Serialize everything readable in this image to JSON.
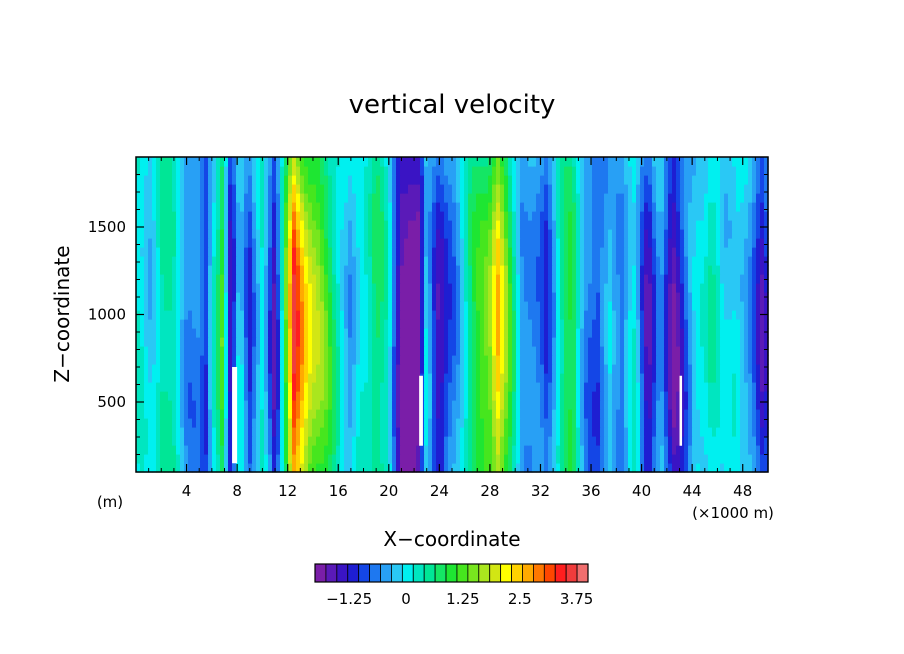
{
  "chart_data": {
    "type": "heatmap",
    "title": "vertical velocity",
    "xlabel": "X−coordinate",
    "ylabel": "Z−coordinate",
    "x_unit_left": "(m)",
    "x_unit_right": "(×1000 m)",
    "xlim": [
      0,
      50
    ],
    "ylim": [
      100,
      1900
    ],
    "x_ticks": [
      4,
      8,
      12,
      16,
      20,
      24,
      28,
      32,
      36,
      40,
      44,
      48
    ],
    "y_ticks": [
      500,
      1000,
      1500
    ],
    "x_tick_labels": [
      "4",
      "8",
      "12",
      "16",
      "20",
      "24",
      "28",
      "32",
      "36",
      "40",
      "44",
      "48"
    ],
    "y_tick_labels": [
      "500",
      "1000",
      "1500"
    ],
    "colorbar": {
      "min": -2.0,
      "max": 4.0,
      "step": 0.25,
      "labels": [
        "−1.25",
        "0",
        "1.25",
        "2.5",
        "3.75"
      ],
      "label_values": [
        -1.25,
        0,
        1.25,
        2.5,
        3.75
      ],
      "colors": [
        "#7a1ea8",
        "#5a1ab8",
        "#3a14c4",
        "#1e1ed2",
        "#1446e6",
        "#1e78f0",
        "#28a0f5",
        "#2ac8f5",
        "#00f0f0",
        "#00e6c0",
        "#00e696",
        "#14e664",
        "#1ee632",
        "#46e61e",
        "#78e61e",
        "#aae61e",
        "#d2e614",
        "#ffff00",
        "#ffd200",
        "#ffaa00",
        "#ff7800",
        "#ff4600",
        "#ff1e1e",
        "#f03c3c",
        "#f06e6e"
      ]
    },
    "columns": [
      {
        "x": 0.0,
        "w": 0.16
      },
      {
        "x": 1.0,
        "w": -0.1
      },
      {
        "x": 2.0,
        "w": 0.55
      },
      {
        "x": 3.0,
        "w": 0.3
      },
      {
        "x": 4.0,
        "w": -0.3
      },
      {
        "x": 5.0,
        "w": -0.6
      },
      {
        "x": 5.5,
        "w": -1.1
      },
      {
        "x": 6.0,
        "w": 0.15
      },
      {
        "x": 6.8,
        "w": 1.2
      },
      {
        "x": 7.5,
        "w": -1.6
      },
      {
        "x": 8.2,
        "w": 0.2
      },
      {
        "x": 9.0,
        "w": -0.8
      },
      {
        "x": 10.0,
        "w": 0.1
      },
      {
        "x": 11.0,
        "w": -1.3
      },
      {
        "x": 12.0,
        "w": 1.6
      },
      {
        "x": 12.5,
        "w": 3.1
      },
      {
        "x": 13.0,
        "w": 2.6
      },
      {
        "x": 14.0,
        "w": 1.8
      },
      {
        "x": 15.0,
        "w": 1.1
      },
      {
        "x": 16.0,
        "w": 0.5
      },
      {
        "x": 17.0,
        "w": -0.5
      },
      {
        "x": 18.0,
        "w": 0.3
      },
      {
        "x": 19.0,
        "w": 0.8
      },
      {
        "x": 20.0,
        "w": 0.1
      },
      {
        "x": 21.0,
        "w": -1.6
      },
      {
        "x": 21.8,
        "w": -2.0
      },
      {
        "x": 22.4,
        "w": -1.8
      },
      {
        "x": 23.0,
        "w": 0.2
      },
      {
        "x": 24.0,
        "w": -1.4
      },
      {
        "x": 25.0,
        "w": -0.7
      },
      {
        "x": 26.0,
        "w": 0.3
      },
      {
        "x": 27.0,
        "w": 0.9
      },
      {
        "x": 28.0,
        "w": 1.6
      },
      {
        "x": 28.6,
        "w": 2.4
      },
      {
        "x": 29.5,
        "w": 1.0
      },
      {
        "x": 30.5,
        "w": -0.2
      },
      {
        "x": 31.5,
        "w": -0.6
      },
      {
        "x": 32.5,
        "w": -0.9
      },
      {
        "x": 33.5,
        "w": 0.4
      },
      {
        "x": 34.5,
        "w": 0.9
      },
      {
        "x": 35.5,
        "w": -0.3
      },
      {
        "x": 36.5,
        "w": -1.0
      },
      {
        "x": 37.5,
        "w": 0.0
      },
      {
        "x": 38.5,
        "w": -0.6
      },
      {
        "x": 39.5,
        "w": 0.2
      },
      {
        "x": 40.5,
        "w": -1.3
      },
      {
        "x": 41.5,
        "w": -0.4
      },
      {
        "x": 42.5,
        "w": -1.5
      },
      {
        "x": 43.5,
        "w": -0.8
      },
      {
        "x": 44.5,
        "w": 0.1
      },
      {
        "x": 45.5,
        "w": 0.5
      },
      {
        "x": 46.5,
        "w": -0.2
      },
      {
        "x": 47.5,
        "w": 0.3
      },
      {
        "x": 48.5,
        "w": -0.5
      },
      {
        "x": 49.5,
        "w": -1.2
      },
      {
        "x": 50.0,
        "w": -0.7
      }
    ],
    "undefined_regions": [
      {
        "x0": 7.6,
        "x1": 8.0,
        "z0": 150,
        "z1": 700
      },
      {
        "x0": 22.4,
        "x1": 22.7,
        "z0": 250,
        "z1": 650
      },
      {
        "x0": 43.0,
        "x1": 43.2,
        "z0": 250,
        "z1": 650
      }
    ]
  }
}
